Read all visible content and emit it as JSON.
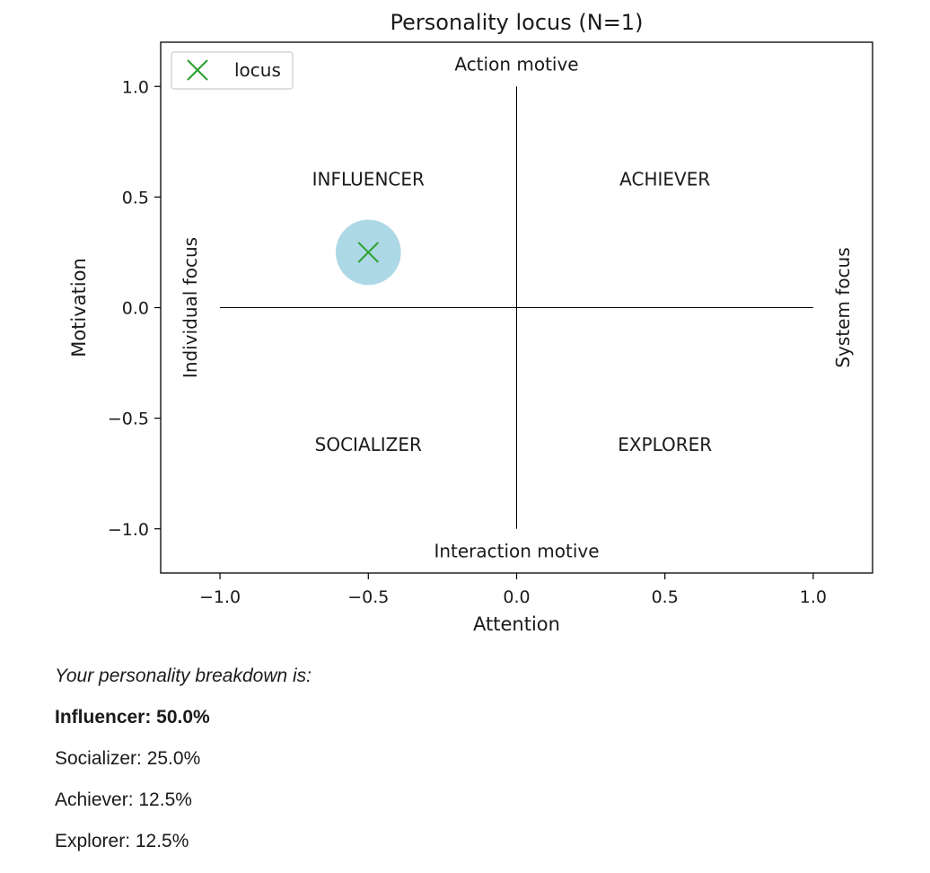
{
  "chart_data": {
    "type": "scatter",
    "title": "Personality locus (N=1)",
    "xlabel": "Attention",
    "ylabel": "Motivation",
    "xlim": [
      -1.2,
      1.2
    ],
    "ylim": [
      -1.2,
      1.2
    ],
    "x_ticks": [
      -1.0,
      -0.5,
      0.0,
      0.5,
      1.0
    ],
    "x_tick_labels": [
      "−1.0",
      "−0.5",
      "0.0",
      "0.5",
      "1.0"
    ],
    "y_ticks": [
      1.0,
      0.5,
      0.0,
      -0.5,
      -1.0
    ],
    "y_tick_labels": [
      "1.0",
      "0.5",
      "0.0",
      "−0.5",
      "−1.0"
    ],
    "grid": false,
    "legend": {
      "placement": "top-left",
      "entries": [
        "locus"
      ]
    },
    "series": [
      {
        "name": "locus",
        "marker": "x",
        "color": "#2ca02c",
        "points": [
          {
            "x": -0.5,
            "y": 0.25
          }
        ]
      }
    ],
    "highlight": {
      "x": -0.5,
      "y": 0.25,
      "radius": 0.11,
      "color": "#add8e6"
    },
    "reference_lines": {
      "horizontal": {
        "y": 0.0,
        "x_range": [
          -1.0,
          1.0
        ]
      },
      "vertical": {
        "x": 0.0,
        "y_range": [
          -1.0,
          1.0
        ]
      }
    },
    "quadrant_labels": [
      {
        "text": "INFLUENCER",
        "x": -0.5,
        "y": 0.58
      },
      {
        "text": "ACHIEVER",
        "x": 0.5,
        "y": 0.58
      },
      {
        "text": "SOCIALIZER",
        "x": -0.5,
        "y": -0.62
      },
      {
        "text": "EXPLORER",
        "x": 0.5,
        "y": -0.62
      }
    ],
    "motive_labels": [
      {
        "text": "Action motive",
        "x": 0.0,
        "y": 1.1
      },
      {
        "text": "Interaction motive",
        "x": 0.0,
        "y": -1.1
      }
    ],
    "focus_labels": [
      {
        "text": "Individual focus",
        "x": -1.1,
        "y": 0.0
      },
      {
        "text": "System focus",
        "x": 1.1,
        "y": 0.0
      }
    ]
  },
  "breakdown": {
    "intro": "Your personality breakdown is:",
    "items": [
      "Influencer: 50.0%",
      "Socializer: 25.0%",
      "Achiever: 12.5%",
      "Explorer: 12.5%"
    ]
  }
}
